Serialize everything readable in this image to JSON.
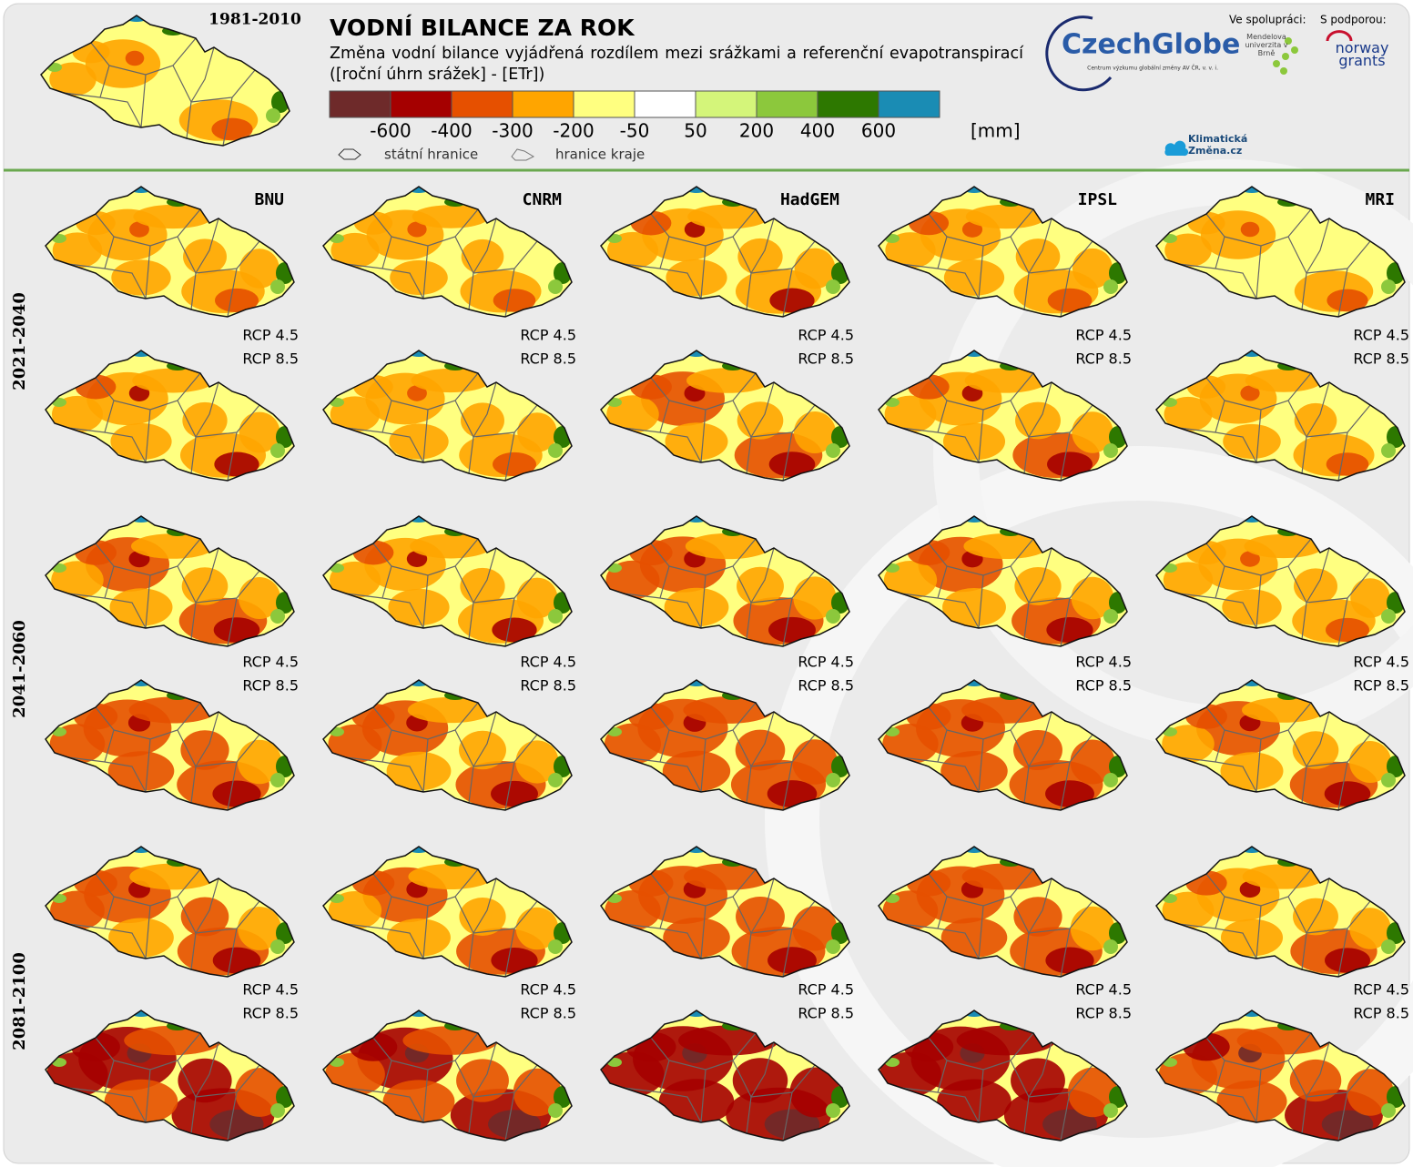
{
  "header": {
    "baseline_period": "1981-2010",
    "title": "VODNÍ BILANCE ZA ROK",
    "subtitle": "Změna vodní bilance vyjádřená rozdílem mezi srážkami a referenční evapotranspirací ([roční úhrn srážek] - [ETr])"
  },
  "legend": {
    "colors": [
      "#6e2a2a",
      "#a50000",
      "#e65000",
      "#ffa500",
      "#ffff80",
      "#ffffff",
      "#d4f57a",
      "#8cc83c",
      "#2d7800",
      "#1a8cb4"
    ],
    "ticks": [
      -600,
      -400,
      -300,
      -200,
      -50,
      50,
      200,
      400,
      600
    ],
    "unit": "[mm]",
    "boundaries": [
      "státní hranice",
      "hranice kraje"
    ]
  },
  "logos": {
    "czechglobe": "CzechGlobe",
    "czechglobe_caption": "Centrum výzkumu globální změny AV ČR, v. v. i.",
    "cooperation_label": "Ve spolupráci:",
    "cooperation_partner": "Mendelova univerzita v Brně",
    "support_label": "S podporou:",
    "support_partner": "norway grants",
    "website": "Klimatická Změna.cz"
  },
  "models": [
    "BNU",
    "CNRM",
    "HadGEM",
    "IPSL",
    "MRI"
  ],
  "periods": [
    "2021-2040",
    "2041-2060",
    "2081-2100"
  ],
  "scenarios": [
    "RCP 4.5",
    "RCP 8.5"
  ]
}
